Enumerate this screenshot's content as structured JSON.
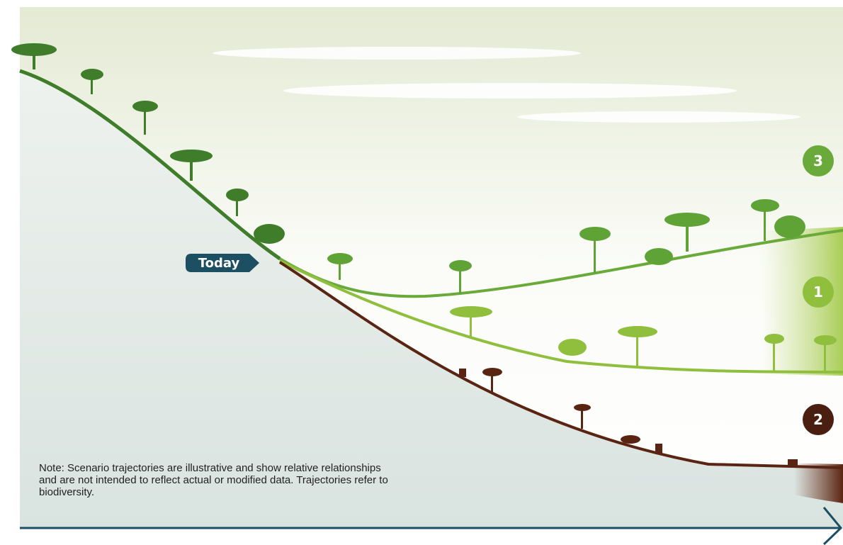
{
  "marker": {
    "label": "Today"
  },
  "scenarios": [
    {
      "label": "3"
    },
    {
      "label": "1"
    },
    {
      "label": "2"
    }
  ],
  "note": "Note: Scenario trajectories are illustrative and show relative relationships and are not intended to reflect actual or modified data. Trajectories refer to biodiversity."
}
